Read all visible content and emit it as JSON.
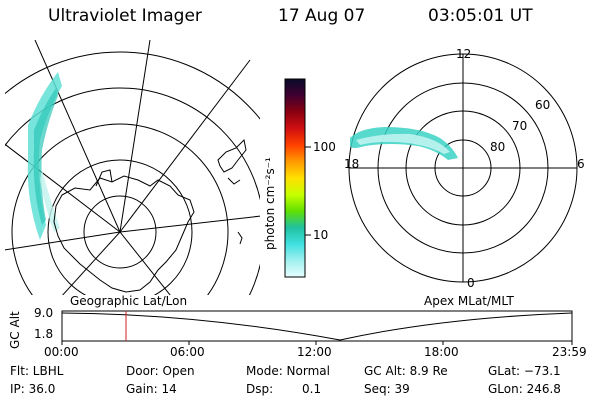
{
  "header": {
    "instrument": "Ultraviolet Imager",
    "date": "17 Aug 07",
    "time": "03:05:01 UT"
  },
  "colorbar": {
    "unit": "photon cm⁻²s⁻¹",
    "ticks": [
      "100",
      "10"
    ],
    "colors": [
      "#0a0a2a",
      "#400030",
      "#8a0010",
      "#d01010",
      "#ff4000",
      "#ff9900",
      "#ffe000",
      "#c8ff00",
      "#60e000",
      "#20c0a0",
      "#40e0e0",
      "#a0f0f0",
      "#e8ffff"
    ]
  },
  "panels": {
    "left_label": "Geographic Lat/Lon",
    "right_label": "Apex MLat/MLT"
  },
  "polar": {
    "mlt_labels": [
      "12",
      "18",
      "6",
      "0"
    ],
    "lat_labels": [
      "60",
      "70",
      "80"
    ]
  },
  "timeline": {
    "axis_title": "GC Alt",
    "y_ticks": [
      "9.0",
      "1.8"
    ],
    "x_ticks": [
      "00:00",
      "06:00",
      "12:00",
      "18:00",
      "23:59"
    ],
    "marker_color": "#d02020"
  },
  "info": {
    "flt": "Flt: LBHL",
    "ip": "IP: 36.0",
    "door": "Door: Open",
    "gain": "Gain: 14",
    "mode": "Mode: Normal",
    "dsp_label": "Dsp:",
    "dsp_value": "0.1",
    "gcalt": "GC Alt: 8.9 Re",
    "seq": "Seq: 39",
    "glat": "GLat: −73.1",
    "glon": "GLon: 246.8"
  }
}
